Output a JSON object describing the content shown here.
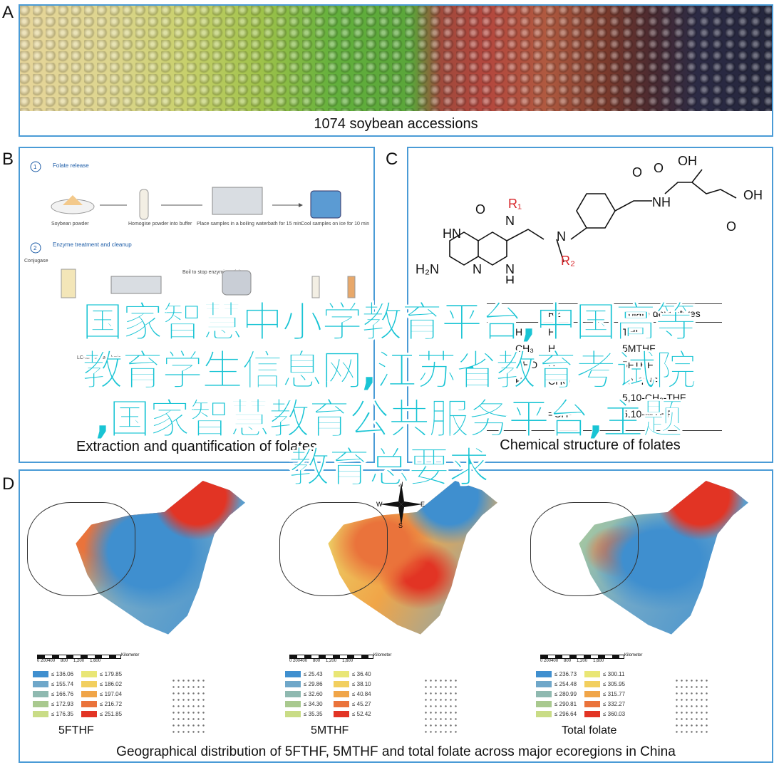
{
  "panels": {
    "a": {
      "letter": "A",
      "caption": "1074 soybean accessions"
    },
    "b": {
      "letter": "B",
      "caption": "Extraction and quantification of folates",
      "step1_num": "1",
      "step1_title": "Folate release",
      "step1_labels": [
        "Soybean powder",
        "Homogise powder into buffer",
        "Place samples in a boiling waterbath for 15 min",
        "Cool samples on ice for 10 min"
      ],
      "step2_num": "2",
      "step2_title": "Enzyme treatment and cleanup",
      "step2_labels": [
        "Conjugase",
        "Boil to stop enzymic activity"
      ],
      "step3_title": "LC-MS/MS analysis"
    },
    "c": {
      "letter": "C",
      "caption": "Chemical structure of folates",
      "atoms": {
        "o": "O",
        "oh1": "OH",
        "oh2": "OH",
        "hn": "HN",
        "h2n": "H₂N",
        "n": "N",
        "nh": "NH",
        "h": "H",
        "r1": "R₁",
        "r2": "R₂"
      },
      "table": {
        "header": [
          "R2",
          "Folate derivatives"
        ],
        "rows": [
          [
            "H",
            "H",
            "THF"
          ],
          [
            "CH₃",
            "H",
            "5MTHF"
          ],
          [
            "CHO",
            "H",
            "5FTHF"
          ],
          [
            "H",
            "CHO",
            "10FTHF"
          ],
          [
            "",
            "",
            "5,10-CH₂-THF"
          ],
          [
            "",
            "=CH-",
            "5,10-MTHF"
          ]
        ]
      }
    },
    "d": {
      "letter": "D",
      "caption": "Geographical distribution of 5FTHF, 5MTHF and total folate across major ecoregions in China",
      "compass": {
        "n": "N",
        "s": "S",
        "e": "E",
        "w": "W"
      },
      "scale_labels": [
        "0 200400",
        "800",
        "1,200",
        "1,600"
      ],
      "scale_unit": "Kilometer",
      "maps": [
        {
          "name": "5FTHF",
          "legend": [
            "≤ 136.06",
            "≤ 155.74",
            "≤ 166.76",
            "≤ 172.93",
            "≤ 176.35",
            "≤ 179.85",
            "≤ 186.02",
            "≤ 197.04",
            "≤ 216.72",
            "≤ 251.85"
          ]
        },
        {
          "name": "5MTHF",
          "legend": [
            "≤ 25.43",
            "≤ 29.86",
            "≤ 32.60",
            "≤ 34.30",
            "≤ 35.35",
            "≤ 36.40",
            "≤ 38.10",
            "≤ 40.84",
            "≤ 45.27",
            "≤ 52.42"
          ]
        },
        {
          "name": "Total folate",
          "legend": [
            "≤ 236.73",
            "≤ 254.48",
            "≤ 280.99",
            "≤ 290.81",
            "≤ 296.64",
            "≤ 300.11",
            "≤ 305.95",
            "≤ 315.77",
            "≤ 332.27",
            "≤ 360.03"
          ]
        }
      ],
      "legend_colors": [
        "#3f8fcf",
        "#6fa7c9",
        "#8fb9b0",
        "#a9c98f",
        "#c9dc86",
        "#e9e676",
        "#f2cf5e",
        "#f0a548",
        "#ea733b",
        "#e23424"
      ]
    }
  },
  "overlay": {
    "lines": [
      "国家智慧中小学教育平台,中国高等",
      "教育学生信息网,江苏省教育考试院",
      ",国家智慧教育公共服务平台,主题",
      "教育总要求"
    ]
  }
}
